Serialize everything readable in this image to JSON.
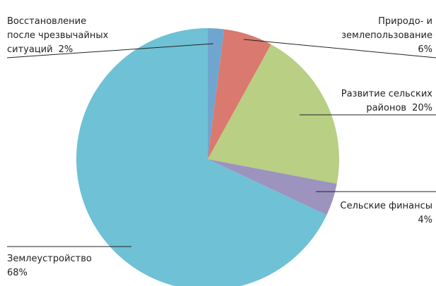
{
  "chart_data": {
    "type": "pie",
    "categories": [
      [
        "Восстановление",
        "после чрезвычайных",
        "ситуаций"
      ],
      [
        "Природо- и",
        "землепользование"
      ],
      [
        "Развитие сельских",
        "районов"
      ],
      [
        "Сельские финансы"
      ],
      [
        "Землеустройство"
      ]
    ],
    "values": [
      2,
      6,
      20,
      4,
      68
    ],
    "value_labels": [
      "2%",
      "6%",
      "20%",
      "4%",
      "68%"
    ],
    "colors": [
      "#6fa6cf",
      "#d9796f",
      "#b8cf84",
      "#9c93bf",
      "#6fc1d5"
    ]
  }
}
